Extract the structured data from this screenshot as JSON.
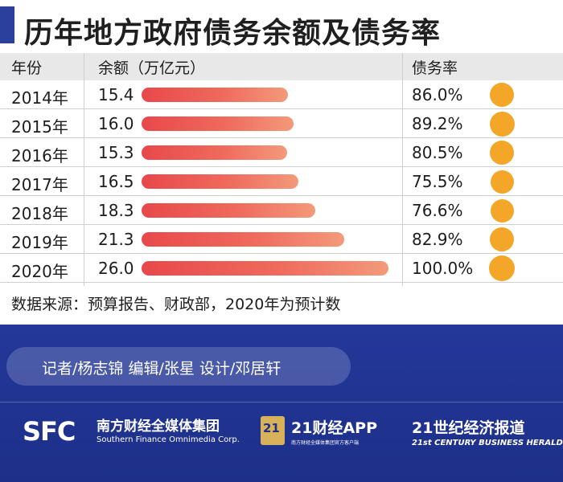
{
  "title": "历年地方政府债务余额及债务率",
  "headers": {
    "year": "年份",
    "balance": "余额（万亿元）",
    "rate": "债务率"
  },
  "chart_data": {
    "type": "table",
    "title": "历年地方政府债务余额及债务率",
    "categories": [
      "2014年",
      "2015年",
      "2016年",
      "2017年",
      "2018年",
      "2019年",
      "2020年"
    ],
    "series": [
      {
        "name": "余额（万亿元）",
        "values": [
          15.4,
          16.0,
          15.3,
          16.5,
          18.3,
          21.3,
          26.0
        ],
        "labels": [
          "15.4",
          "16.0",
          "15.3",
          "16.5",
          "18.3",
          "21.3",
          "26.0"
        ]
      },
      {
        "name": "债务率",
        "values": [
          86.0,
          89.2,
          80.5,
          75.5,
          76.6,
          82.9,
          100.0
        ],
        "labels": [
          "86.0%",
          "89.2%",
          "80.5%",
          "75.5%",
          "76.6%",
          "82.9%",
          "100.0%"
        ]
      }
    ],
    "bar_color": "#ec5a52",
    "dot_color": "#f4a628"
  },
  "source": "数据来源：预算报告、财政部，2020年为预计数",
  "credits": "记者/杨志锦 编辑/张星 设计/邓居轩",
  "logos": {
    "sfc_mark": "SFC",
    "sfc_cn": "南方财经全媒体集团",
    "sfc_en": "Southern Finance Omnimedia Corp.",
    "app_badge": "21",
    "app_name": "21财经APP",
    "app_sub": "南方财经全媒体集团官方客户端",
    "herald_cn": "21世纪经济报道",
    "herald_en": "21st CENTURY BUSINESS HERALD"
  },
  "colors": {
    "footer_bg": "#24389a",
    "accent": "#2b3f9c",
    "header_row_bg": "#e8e8e8"
  }
}
